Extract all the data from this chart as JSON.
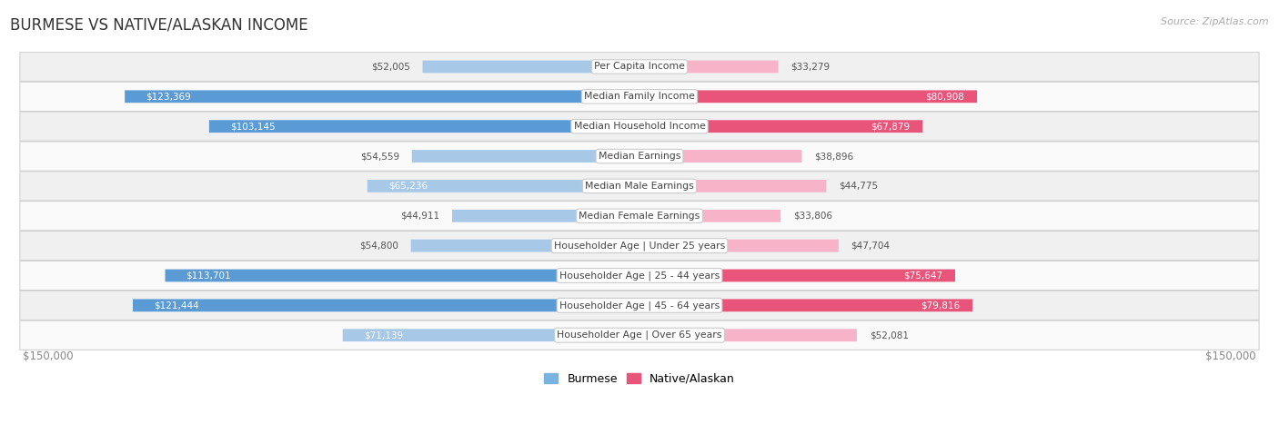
{
  "title": "BURMESE VS NATIVE/ALASKAN INCOME",
  "source": "Source: ZipAtlas.com",
  "categories": [
    "Per Capita Income",
    "Median Family Income",
    "Median Household Income",
    "Median Earnings",
    "Median Male Earnings",
    "Median Female Earnings",
    "Householder Age | Under 25 years",
    "Householder Age | 25 - 44 years",
    "Householder Age | 45 - 64 years",
    "Householder Age | Over 65 years"
  ],
  "burmese_values": [
    52005,
    123369,
    103145,
    54559,
    65236,
    44911,
    54800,
    113701,
    121444,
    71139
  ],
  "native_values": [
    33279,
    80908,
    67879,
    38896,
    44775,
    33806,
    47704,
    75647,
    79816,
    52081
  ],
  "burmese_labels": [
    "$52,005",
    "$123,369",
    "$103,145",
    "$54,559",
    "$65,236",
    "$44,911",
    "$54,800",
    "$113,701",
    "$121,444",
    "$71,139"
  ],
  "native_labels": [
    "$33,279",
    "$80,908",
    "$67,879",
    "$38,896",
    "$44,775",
    "$33,806",
    "$47,704",
    "$75,647",
    "$79,816",
    "$52,081"
  ],
  "max_value": 150000,
  "burmese_color_light": "#a8c8e8",
  "burmese_color_dark": "#5b9bd5",
  "native_color_light": "#f7b3c8",
  "native_color_dark": "#e8547a",
  "bg_color": "#ffffff",
  "row_bg_even": "#f0f0f0",
  "row_bg_odd": "#fafafa",
  "legend_burmese_color": "#7ab3df",
  "legend_native_color": "#e8547a",
  "burmese_dark_threshold": 90000,
  "native_dark_threshold": 60000,
  "label_inside_min_burmese": 40000,
  "label_inside_min_native": 30000
}
